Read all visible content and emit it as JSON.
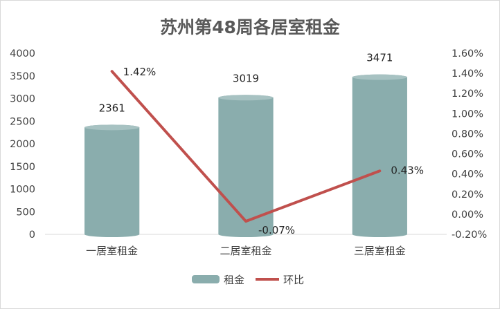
{
  "chart_data": {
    "type": "bar",
    "title": "苏州第48周各居室租金",
    "categories": [
      "一居室租金",
      "二居室租金",
      "三居室租金"
    ],
    "series": [
      {
        "name": "租金",
        "type": "bar",
        "axis": "left",
        "values": [
          2361,
          3019,
          3471
        ],
        "labels": [
          "2361",
          "3019",
          "3471"
        ],
        "color": "#8aadad"
      },
      {
        "name": "环比",
        "type": "line",
        "axis": "right",
        "values": [
          1.42,
          -0.07,
          0.43
        ],
        "labels": [
          "1.42%",
          "-0.07%",
          "0.43%"
        ],
        "color": "#c0504d"
      }
    ],
    "y_left": {
      "range": [
        0,
        4000
      ],
      "ticks": [
        0,
        500,
        1000,
        1500,
        2000,
        2500,
        3000,
        3500,
        4000
      ],
      "tick_labels": [
        "0",
        "500",
        "1000",
        "1500",
        "2000",
        "2500",
        "3000",
        "3500",
        "4000"
      ]
    },
    "y_right": {
      "range": [
        -0.2,
        1.6
      ],
      "ticks": [
        -0.2,
        0,
        0.2,
        0.4,
        0.6,
        0.8,
        1.0,
        1.2,
        1.4,
        1.6
      ],
      "tick_labels": [
        "-0.20%",
        "0.00%",
        "0.20%",
        "0.40%",
        "0.60%",
        "0.80%",
        "1.00%",
        "1.20%",
        "1.40%",
        "1.60%"
      ]
    },
    "grid": false,
    "legend_position": "bottom",
    "legend": [
      {
        "name": "租金",
        "kind": "bar",
        "color": "#8aadad"
      },
      {
        "name": "环比",
        "kind": "line",
        "color": "#c0504d"
      }
    ]
  }
}
